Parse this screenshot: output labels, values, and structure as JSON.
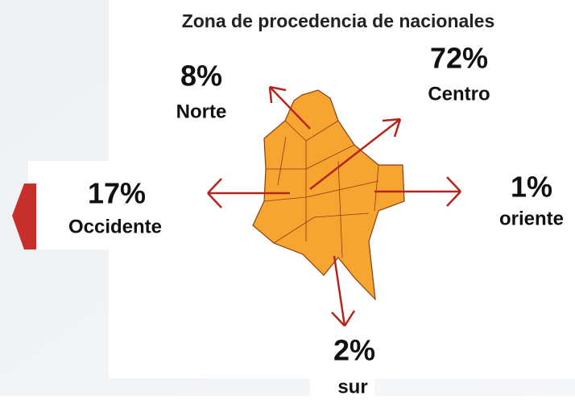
{
  "title": "Zona de procedencia de nacionales",
  "regions": [
    {
      "percent": "8%",
      "name": "Norte"
    },
    {
      "percent": "72%",
      "name": "Centro"
    },
    {
      "percent": "17%",
      "name": "Occidente"
    },
    {
      "percent": "1%",
      "name": "oriente"
    },
    {
      "percent": "2%",
      "name": "sur"
    }
  ]
}
